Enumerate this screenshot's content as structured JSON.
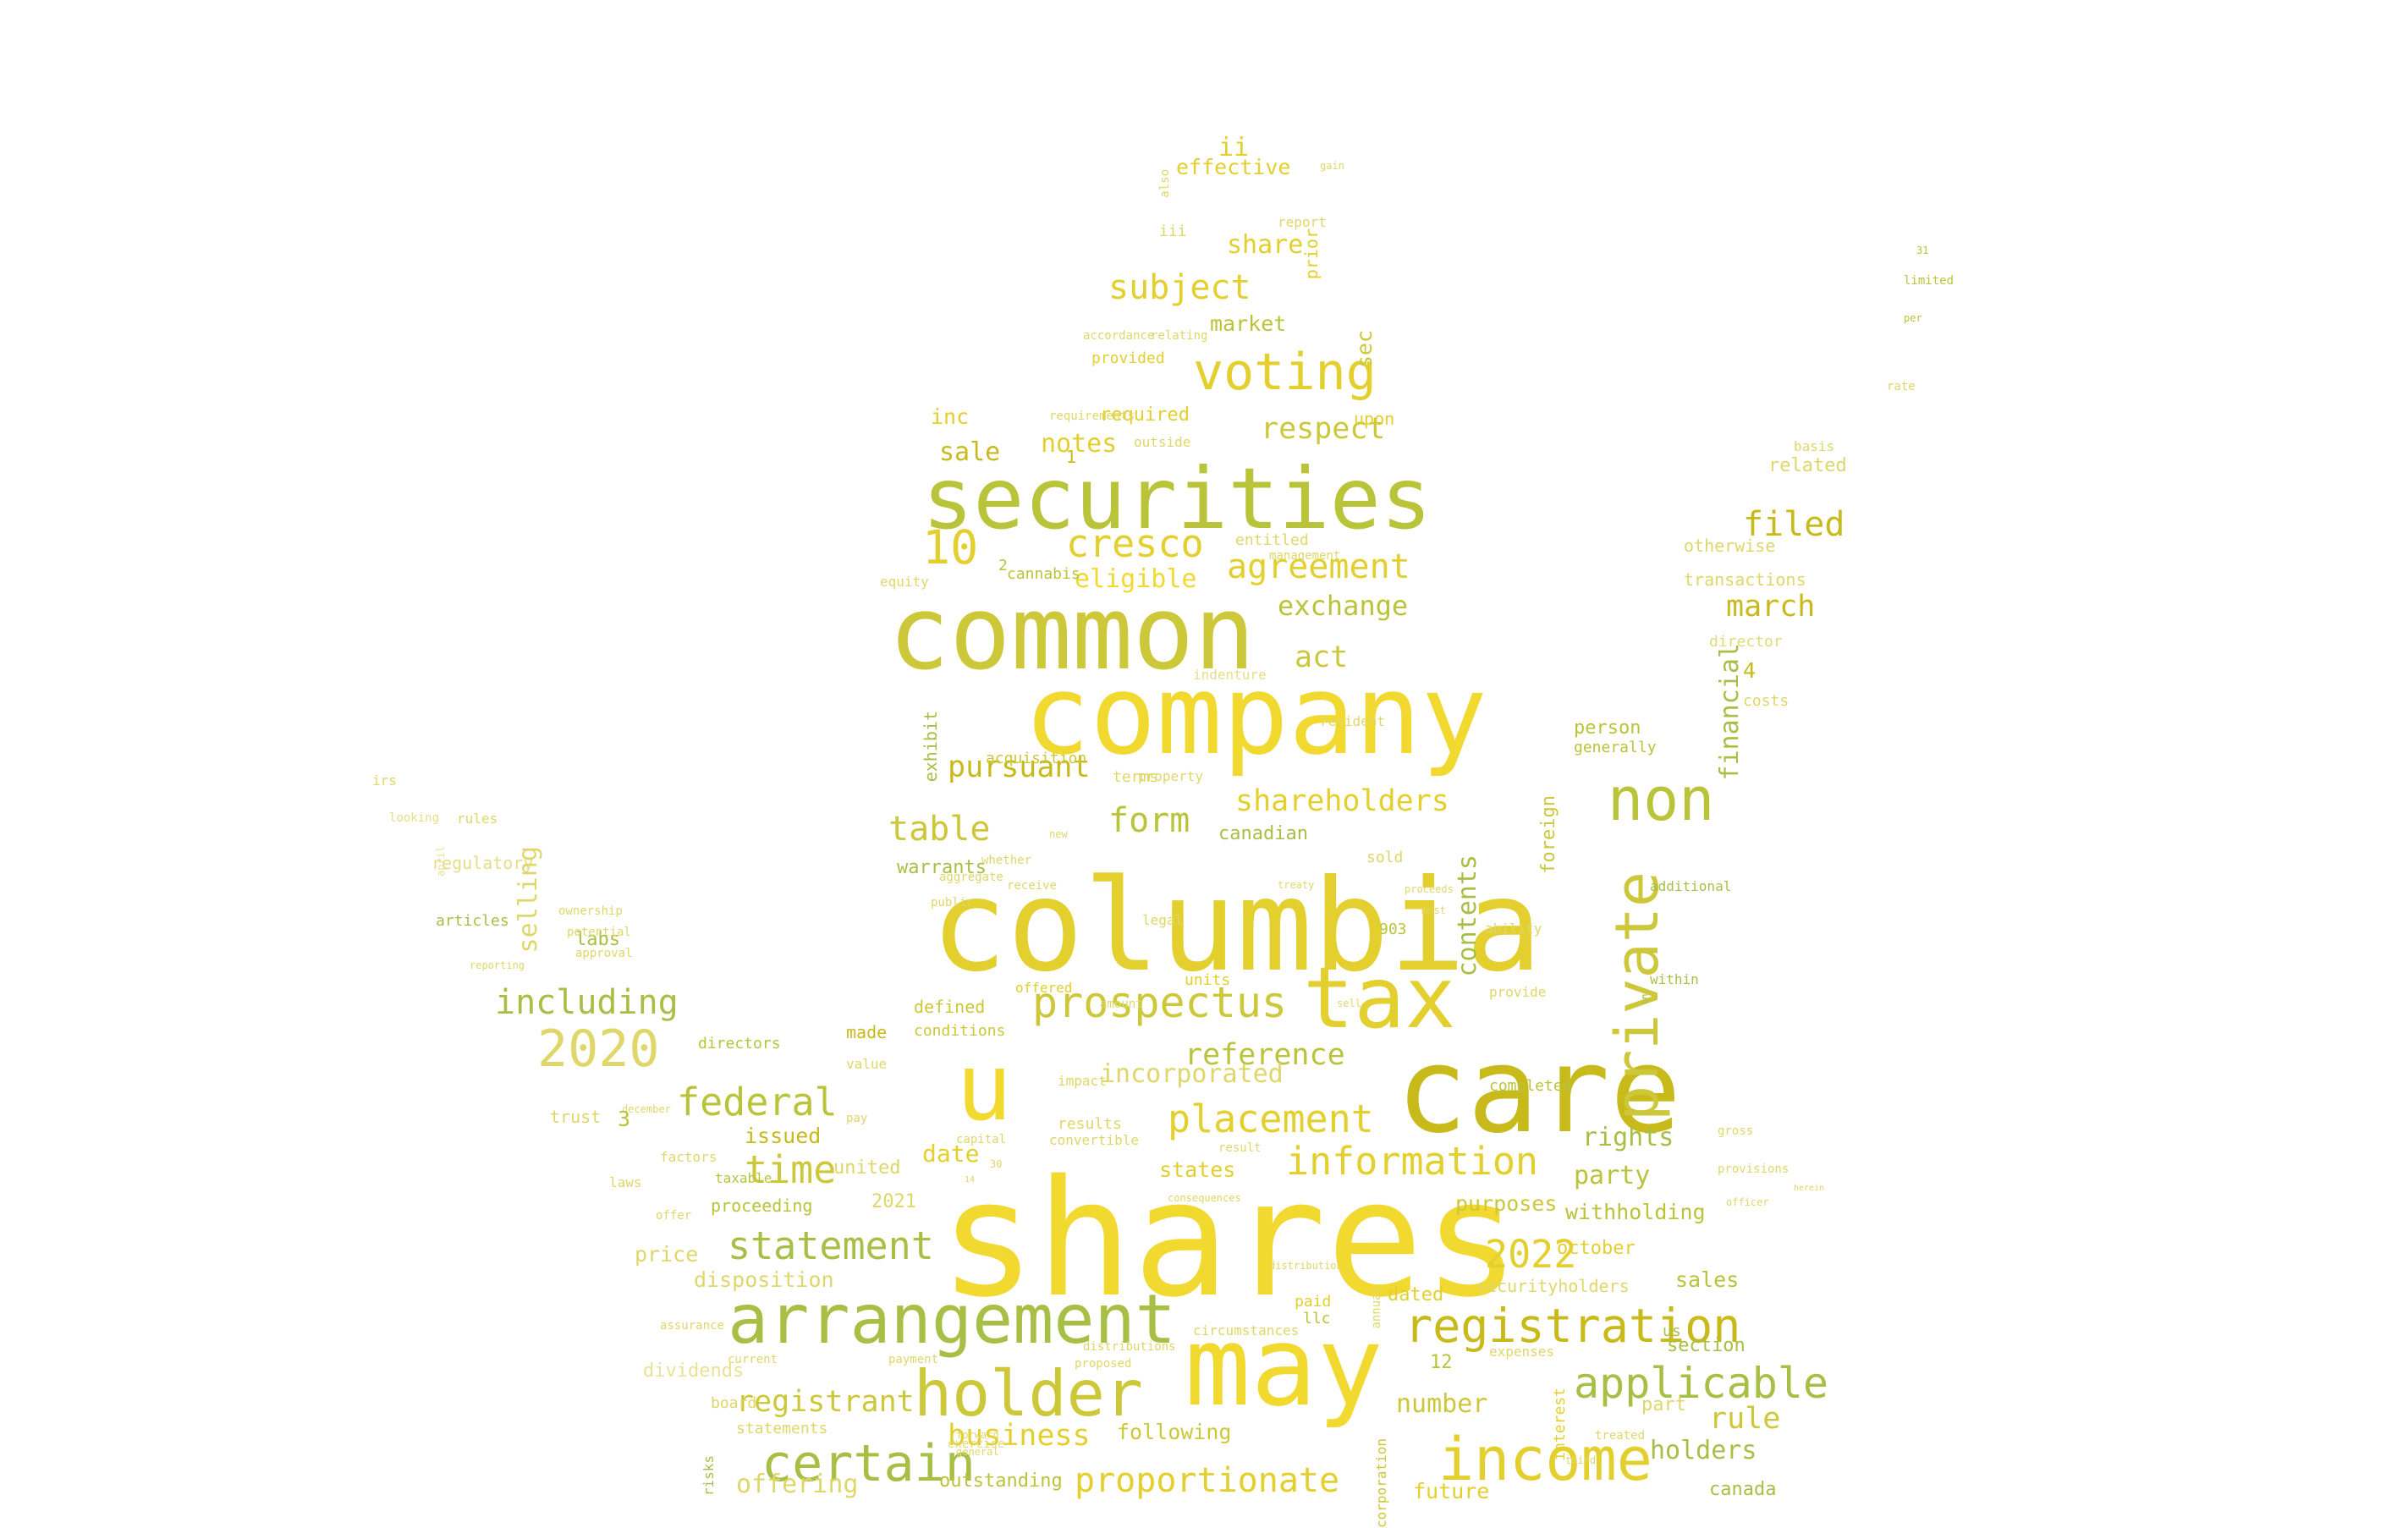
{
  "colors": {
    "background": "#ffffff",
    "palette": [
      "#f2d930",
      "#e3cf2e",
      "#cdc73a",
      "#b9c43a",
      "#c9ba1c",
      "#a8bf46",
      "#dfd76a",
      "#e8df94"
    ]
  },
  "words": [
    "shares",
    "columbia",
    "company",
    "common",
    "care",
    "may",
    "securities",
    "u",
    "arrangement",
    "tax",
    "holder",
    "income",
    "voting",
    "registration",
    "non",
    "prospectus",
    "certain",
    "applicable",
    "placement",
    "private",
    "information",
    "2020",
    "federal",
    "cresco",
    "statement",
    "agreement",
    "time",
    "form",
    "subject",
    "10",
    "table",
    "shareholders",
    "reference",
    "proportionate",
    "incorporated",
    "filed",
    "2022",
    "including",
    "pursuant",
    "business",
    "holders",
    "registrant",
    "exchange",
    "eligible",
    "act",
    "rule",
    "march",
    "selling",
    "contents",
    "financial",
    "rights",
    "party",
    "withholding",
    "purposes",
    "sales",
    "number",
    "offering",
    "following",
    "future",
    "canada",
    "section",
    "part",
    "dated",
    "outstanding",
    "respect",
    "share",
    "effective",
    "market",
    "sale",
    "inc",
    "notes",
    "required",
    "related",
    "otherwise",
    "transactions",
    "director",
    "person",
    "generally",
    "costs",
    "foreign",
    "ii",
    "iii",
    "prior",
    "sec",
    "upon",
    "canadian",
    "warrants",
    "exhibit",
    "acquisition",
    "terms",
    "defined",
    "conditions",
    "made",
    "value",
    "issued",
    "united",
    "states",
    "date",
    "2021",
    "price",
    "disposition",
    "dividends",
    "trust",
    "labs",
    "articles",
    "regulatory",
    "directors",
    "proceeding",
    "taxable",
    "board",
    "statements",
    "risks",
    "corporation",
    "interest",
    "llc",
    "us",
    "paid",
    "sold",
    "units",
    "results",
    "convertible",
    "offered",
    "impact",
    "completed",
    "securityholders",
    "expenses",
    "treated",
    "ability",
    "additional",
    "within",
    "provide",
    "cannabis",
    "equity",
    "entitled",
    "management",
    "resident",
    "basis",
    "limited",
    "per",
    "rate",
    "provided",
    "outside",
    "report",
    "also",
    "gain",
    "accordance",
    "relating",
    "requirements",
    "indenture",
    "property",
    "irs",
    "rules",
    "looking",
    "ownership",
    "potential",
    "reporting",
    "approval",
    "factors",
    "laws",
    "offer",
    "current",
    "payment",
    "proposed",
    "distributions",
    "circumstances",
    "exercise",
    "annual",
    "gross",
    "provisions",
    "officer",
    "herein",
    "treaty",
    "aggregate",
    "whether",
    "receive",
    "public",
    "new",
    "legal",
    "proceeds",
    "must",
    "sell",
    "903",
    "amount",
    "forward",
    "general",
    "third",
    "distribution",
    "consequences",
    "result",
    "capital",
    "pay",
    "assurance",
    "april",
    "december",
    "october",
    "31",
    "30",
    "14",
    "12",
    "5",
    "4",
    "3",
    "2",
    "1",
    "b",
    "000"
  ]
}
